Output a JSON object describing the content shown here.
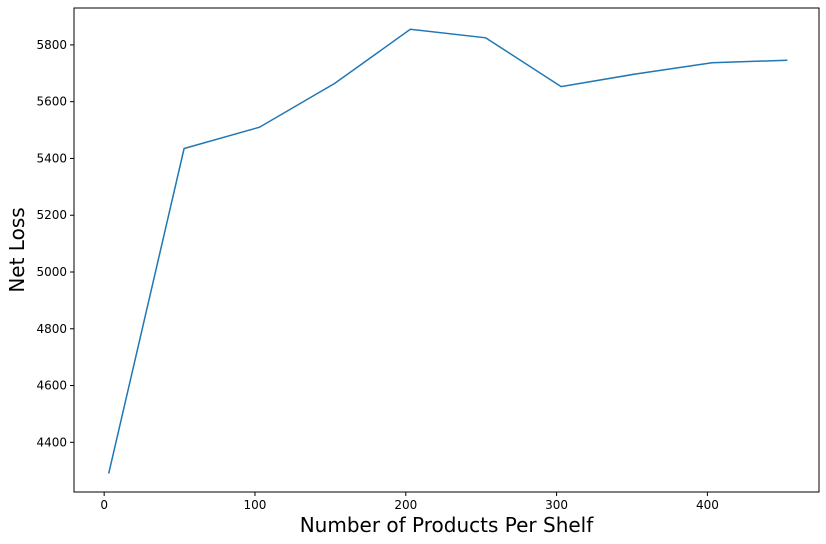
{
  "chart_data": {
    "type": "line",
    "title": "",
    "xlabel": "Number of Products Per Shelf",
    "ylabel": "Net Loss",
    "xlim": [
      -20,
      474
    ],
    "ylim": [
      4225,
      5930
    ],
    "xticks": [
      0,
      100,
      200,
      300,
      400
    ],
    "yticks": [
      4400,
      4600,
      4800,
      5000,
      5200,
      5400,
      5600,
      5800
    ],
    "grid": false,
    "legend": "none",
    "series": [
      {
        "color": "#1f77b4",
        "x": [
          3,
          53,
          103,
          153,
          203,
          253,
          303,
          353,
          403,
          453
        ],
        "y": [
          4290,
          5435,
          5510,
          5665,
          5855,
          5825,
          5653,
          5698,
          5737,
          5746
        ]
      }
    ]
  }
}
